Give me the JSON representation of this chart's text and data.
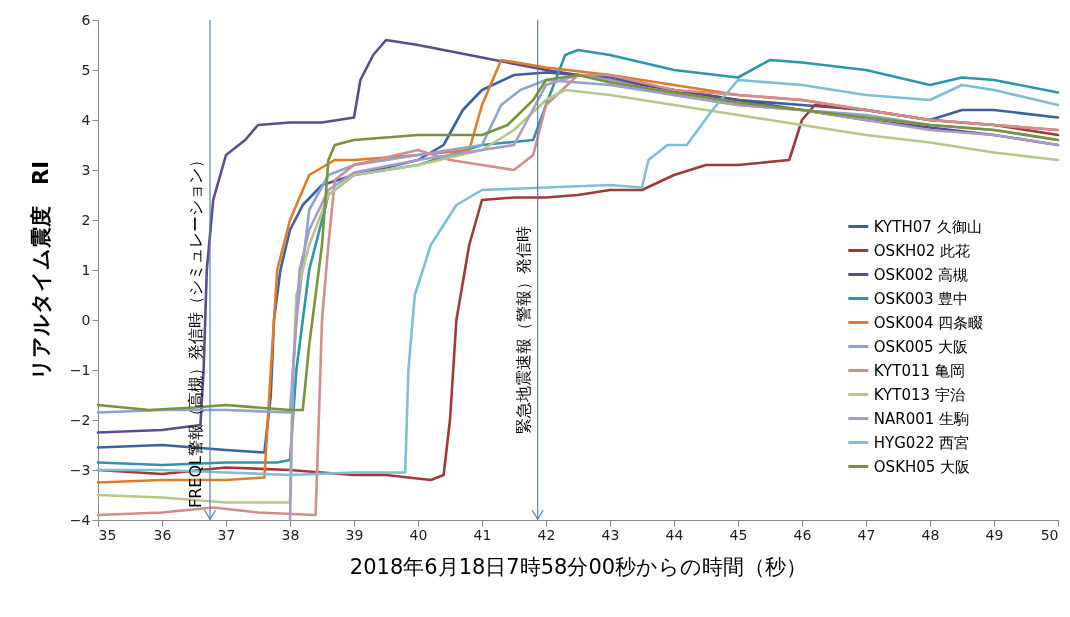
{
  "chart_data": {
    "type": "line",
    "xlabel": "2018年6月18日7時58分00秒からの時間（秒）",
    "ylabel": "リアルタイム震度　RI",
    "xlim": [
      35,
      50
    ],
    "xticks": [
      35,
      36,
      37,
      38,
      39,
      40,
      41,
      42,
      43,
      44,
      45,
      46,
      47,
      48,
      49,
      50
    ],
    "ylim": [
      -4,
      6
    ],
    "yticks": [
      -4,
      -3,
      -2,
      -1,
      0,
      1,
      2,
      3,
      4,
      5,
      6
    ],
    "grid": false,
    "legend": "right",
    "marker": "none",
    "line_style": "solid",
    "ref_lines": [
      {
        "axis": "x",
        "value": 36.75,
        "label": "FREQL警報（高槻）発信時（シミュレーション）",
        "color": "#4f81bd"
      },
      {
        "axis": "x",
        "value": 41.87,
        "label": "緊急地震速報（警報）発信時",
        "color": "#4f81bd"
      }
    ],
    "series": [
      {
        "name": "KYTH07 久御山",
        "color": "#3a62a0",
        "x": [
          35,
          36,
          37,
          37.6,
          37.7,
          37.75,
          37.85,
          38,
          38.2,
          38.5,
          39,
          40,
          40.4,
          40.7,
          41,
          41.5,
          42,
          43,
          44,
          45,
          46,
          47,
          48,
          48.5,
          49,
          50
        ],
        "values": [
          -2.55,
          -2.5,
          -2.6,
          -2.65,
          -1.5,
          0,
          1,
          1.8,
          2.3,
          2.7,
          2.9,
          3.2,
          3.5,
          4.2,
          4.6,
          4.9,
          4.95,
          4.85,
          4.6,
          4.4,
          4.3,
          4.2,
          4.0,
          4.2,
          4.2,
          4.05
        ]
      },
      {
        "name": "OSKH02 此花",
        "color": "#a03a38",
        "x": [
          35,
          36,
          37,
          38,
          39,
          39.5,
          40.2,
          40.4,
          40.5,
          40.6,
          40.8,
          41,
          41.5,
          42,
          42.5,
          43,
          43.5,
          44,
          44.5,
          45,
          45.8,
          46,
          46.2,
          47,
          48,
          49,
          50
        ],
        "values": [
          -3.0,
          -3.08,
          -2.95,
          -3.0,
          -3.1,
          -3.1,
          -3.2,
          -3.1,
          -2,
          0,
          1.5,
          2.4,
          2.45,
          2.45,
          2.5,
          2.6,
          2.6,
          2.9,
          3.1,
          3.1,
          3.2,
          4.0,
          4.3,
          4.2,
          4.0,
          3.9,
          3.7
        ]
      },
      {
        "name": "OSK002 高槻",
        "color": "#5e4b8b",
        "x": [
          35,
          36,
          36.6,
          36.65,
          36.7,
          36.8,
          37,
          37.3,
          37.5,
          38,
          38.5,
          39,
          39.1,
          39.3,
          39.5,
          40,
          41,
          42,
          43,
          44,
          45,
          46,
          47,
          48,
          49,
          50
        ],
        "values": [
          -2.25,
          -2.2,
          -2.1,
          -1,
          1,
          2.4,
          3.3,
          3.6,
          3.9,
          3.95,
          3.95,
          4.05,
          4.8,
          5.3,
          5.6,
          5.5,
          5.25,
          5.0,
          4.8,
          4.6,
          4.4,
          4.2,
          4.0,
          3.85,
          3.7,
          3.5
        ]
      },
      {
        "name": "OSK003 豊中",
        "color": "#2e96aa",
        "x": [
          35,
          36,
          37,
          37.8,
          38,
          38.1,
          38.3,
          38.6,
          39,
          40,
          41,
          41.8,
          42,
          42.3,
          42.5,
          43,
          44,
          45,
          45.5,
          46,
          47,
          48,
          48.5,
          49,
          50
        ],
        "values": [
          -2.85,
          -2.9,
          -2.85,
          -2.85,
          -2.8,
          -1,
          1,
          2.5,
          2.9,
          3.1,
          3.5,
          3.6,
          4.3,
          5.3,
          5.4,
          5.3,
          5.0,
          4.85,
          5.2,
          5.15,
          5.0,
          4.7,
          4.85,
          4.8,
          4.55
        ]
      },
      {
        "name": "OSK004 四条畷",
        "color": "#e07b2a",
        "x": [
          35,
          36,
          37,
          37.6,
          37.7,
          37.8,
          38,
          38.3,
          38.7,
          39,
          40,
          40.8,
          41,
          41.3,
          42,
          43,
          44,
          45,
          46,
          47,
          48,
          49,
          50
        ],
        "values": [
          -3.25,
          -3.2,
          -3.2,
          -3.15,
          -1,
          1,
          2.0,
          2.9,
          3.2,
          3.2,
          3.3,
          3.4,
          4.3,
          5.2,
          5.05,
          4.9,
          4.7,
          4.5,
          4.4,
          4.2,
          4.0,
          3.9,
          3.8
        ]
      },
      {
        "name": "OSK005 大阪",
        "color": "#8ea3cf",
        "x": [
          35,
          36,
          37,
          38,
          38.1,
          38.3,
          38.6,
          39,
          40,
          41,
          41.3,
          41.6,
          42,
          43,
          44,
          45,
          46,
          47,
          48,
          49,
          50
        ],
        "values": [
          -1.85,
          -1.8,
          -1.8,
          -1.85,
          0,
          2.2,
          2.9,
          3.1,
          3.3,
          3.5,
          4.3,
          4.6,
          4.8,
          4.7,
          4.5,
          4.3,
          4.2,
          4.1,
          3.9,
          3.8,
          3.6
        ]
      },
      {
        "name": "KYT011 亀岡",
        "color": "#d48c8c",
        "x": [
          35,
          36,
          36.8,
          37.5,
          38.4,
          38.45,
          38.5,
          38.6,
          38.7,
          39,
          40,
          40.5,
          41,
          41.5,
          41.8,
          42,
          42.5,
          43,
          44,
          45,
          46,
          47,
          48,
          49,
          50
        ],
        "values": [
          -3.9,
          -3.85,
          -3.75,
          -3.85,
          -3.9,
          -2,
          0,
          1.5,
          2.8,
          3.1,
          3.4,
          3.2,
          3.1,
          3.0,
          3.3,
          4.3,
          4.9,
          4.9,
          4.6,
          4.5,
          4.4,
          4.2,
          4.0,
          3.9,
          3.8
        ]
      },
      {
        "name": "KYT013 宇治",
        "color": "#b3c98a",
        "x": [
          35,
          36,
          37,
          38,
          38.05,
          38.1,
          38.3,
          38.6,
          39,
          40,
          41,
          41.5,
          42,
          42.3,
          43,
          44,
          45,
          46,
          47,
          48,
          49,
          50
        ],
        "values": [
          -3.5,
          -3.55,
          -3.65,
          -3.65,
          -1,
          0.5,
          1.5,
          2.5,
          2.9,
          3.1,
          3.4,
          3.8,
          4.4,
          4.6,
          4.5,
          4.3,
          4.1,
          3.9,
          3.7,
          3.55,
          3.35,
          3.2
        ]
      },
      {
        "name": "NAR001 生駒",
        "color": "#a89bc7",
        "x": [
          38,
          38.05,
          38.15,
          38.3,
          38.6,
          39,
          40,
          41,
          41.5,
          42,
          42.5,
          43,
          44,
          45,
          46,
          47,
          48,
          49,
          50
        ],
        "values": [
          -4.0,
          -1,
          1,
          1.8,
          2.6,
          2.95,
          3.2,
          3.4,
          3.5,
          4.7,
          4.9,
          4.8,
          4.5,
          4.3,
          4.2,
          4.0,
          3.8,
          3.7,
          3.5
        ]
      },
      {
        "name": "HYG022 西宮",
        "color": "#7fbfd4",
        "x": [
          35,
          36,
          37,
          38,
          39,
          39.8,
          39.85,
          39.95,
          40.2,
          40.6,
          41,
          42,
          43,
          43.5,
          43.6,
          43.9,
          44.2,
          44.6,
          45,
          46,
          47,
          48,
          48.5,
          49,
          50
        ],
        "values": [
          -3.0,
          -3.0,
          -3.05,
          -3.1,
          -3.05,
          -3.05,
          -1,
          0.5,
          1.5,
          2.3,
          2.6,
          2.65,
          2.7,
          2.65,
          3.2,
          3.5,
          3.5,
          4.2,
          4.8,
          4.7,
          4.5,
          4.4,
          4.7,
          4.6,
          4.3
        ]
      },
      {
        "name": "OSKH05 大阪",
        "color": "#77933c",
        "x": [
          35,
          35.8,
          36.5,
          37,
          38,
          38.2,
          38.3,
          38.5,
          38.6,
          38.7,
          39,
          40,
          41,
          41.4,
          41.8,
          42,
          42.5,
          43,
          44,
          45,
          46,
          47,
          48,
          49,
          50
        ],
        "values": [
          -1.7,
          -1.8,
          -1.75,
          -1.7,
          -1.8,
          -1.8,
          -0.5,
          1.5,
          3.2,
          3.5,
          3.6,
          3.7,
          3.7,
          3.9,
          4.4,
          4.8,
          4.9,
          4.75,
          4.55,
          4.35,
          4.2,
          4.05,
          3.9,
          3.8,
          3.6
        ]
      }
    ]
  }
}
